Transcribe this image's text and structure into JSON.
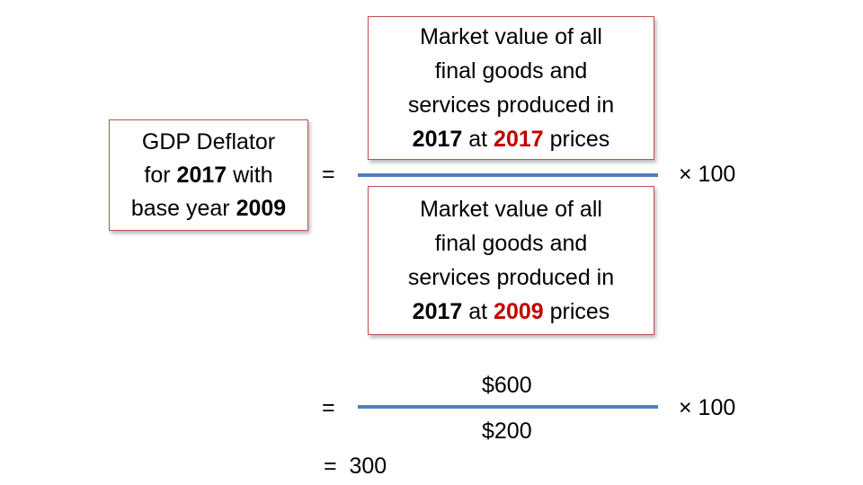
{
  "left": {
    "line1": "GDP Deflator",
    "line2_pre": "for ",
    "line2_year": "2017",
    "line2_post": " with",
    "line3_pre": "base year ",
    "line3_year": "2009"
  },
  "numerator": {
    "line1": "Market value of all",
    "line2": "final goods and",
    "line3": "services produced in",
    "line4_year": "2017",
    "line4_mid": " at ",
    "line4_price_year": "2017",
    "line4_post": " prices"
  },
  "denominator": {
    "line1": "Market value of all",
    "line2": "final goods and",
    "line3": "services produced in",
    "line4_year": "2017",
    "line4_mid": " at ",
    "line4_price_year": "2009",
    "line4_post": " prices"
  },
  "equals": "=",
  "times_100": "× 100",
  "example": {
    "numerator": "$600",
    "denominator": "$200"
  },
  "result": "=  300",
  "colors": {
    "box_border": "#c0504d",
    "fraction_line": "#4f81bd",
    "highlight": "#c00000"
  }
}
